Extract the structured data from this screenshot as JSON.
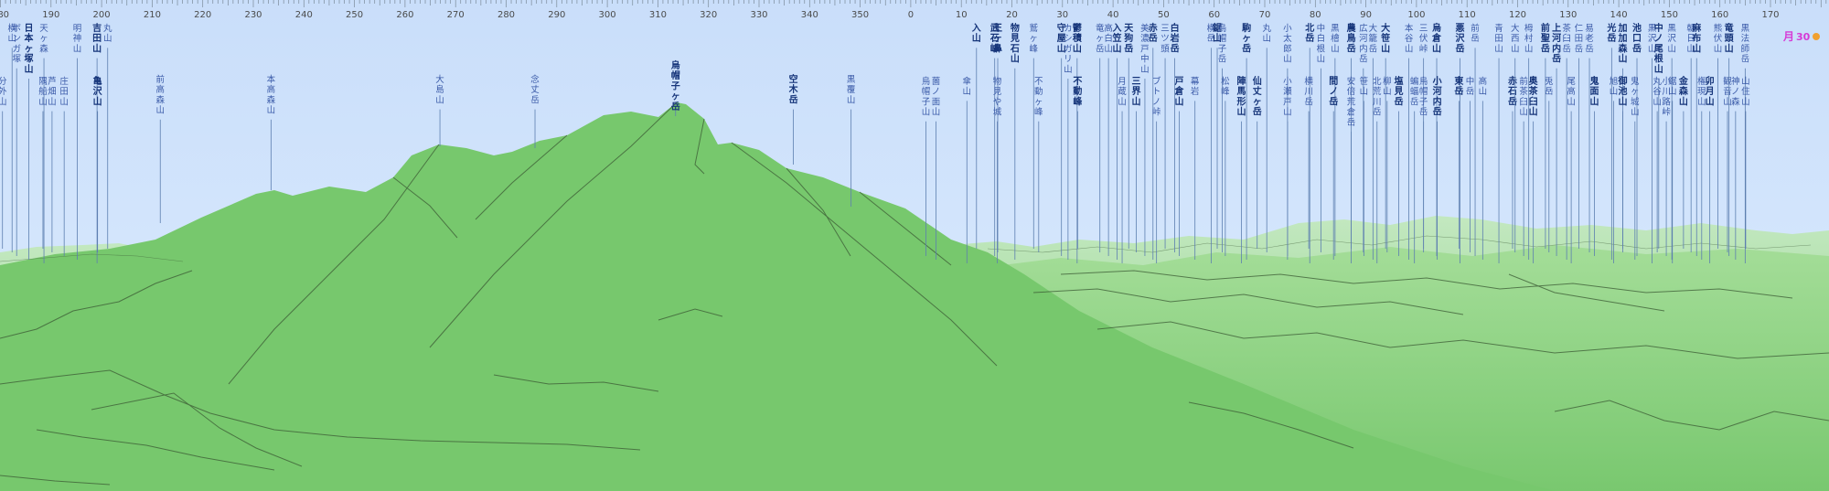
{
  "compass": {
    "degree_labels": [
      {
        "d": 180,
        "t": "180"
      },
      {
        "d": 190,
        "t": "190"
      },
      {
        "d": 200,
        "t": "200"
      },
      {
        "d": 210,
        "t": "210"
      },
      {
        "d": 220,
        "t": "220"
      },
      {
        "d": 230,
        "t": "230"
      },
      {
        "d": 240,
        "t": "240"
      },
      {
        "d": 250,
        "t": "250"
      },
      {
        "d": 260,
        "t": "260"
      },
      {
        "d": 270,
        "t": "270"
      },
      {
        "d": 280,
        "t": "280"
      },
      {
        "d": 290,
        "t": "290"
      },
      {
        "d": 300,
        "t": "300"
      },
      {
        "d": 310,
        "t": "310"
      },
      {
        "d": 320,
        "t": "320"
      },
      {
        "d": 330,
        "t": "330"
      },
      {
        "d": 340,
        "t": "340"
      },
      {
        "d": 350,
        "t": "350"
      },
      {
        "d": 360,
        "t": "0"
      },
      {
        "d": 370,
        "t": "10"
      },
      {
        "d": 380,
        "t": "20"
      },
      {
        "d": 390,
        "t": "30"
      },
      {
        "d": 400,
        "t": "40"
      },
      {
        "d": 410,
        "t": "50"
      },
      {
        "d": 420,
        "t": "60"
      },
      {
        "d": 430,
        "t": "70"
      },
      {
        "d": 440,
        "t": "80"
      },
      {
        "d": 450,
        "t": "90"
      },
      {
        "d": 460,
        "t": "100"
      },
      {
        "d": 470,
        "t": "110"
      },
      {
        "d": 480,
        "t": "120"
      },
      {
        "d": 490,
        "t": "130"
      },
      {
        "d": 500,
        "t": "140"
      },
      {
        "d": 510,
        "t": "150"
      },
      {
        "d": 520,
        "t": "160"
      },
      {
        "d": 530,
        "t": "170"
      }
    ]
  },
  "moon_label": "月",
  "moon_detail": "30",
  "peaks_near": [
    {
      "name": "前高森山",
      "d": 211.6,
      "peak": 88
    },
    {
      "name": "本高森山",
      "d": 233.5,
      "peak": 82
    },
    {
      "name": "大島山",
      "d": 266.9,
      "peak": 92
    },
    {
      "name": "念丈岳",
      "d": 285.7,
      "peak": 92
    },
    {
      "name": "烏帽子ヶ岳",
      "d": 313.5,
      "peak": 72,
      "bold": true
    },
    {
      "name": "空木岳",
      "d": 336.8,
      "peak": 90,
      "bold": true
    },
    {
      "name": "黒覆山",
      "d": 348.2,
      "peak": 92
    }
  ],
  "peaks_far": [
    {
      "name": "分外山",
      "d": 180.4,
      "row": 1
    },
    {
      "name": "横山",
      "d": 182.3,
      "row": 0
    },
    {
      "name": "ボンガ塚",
      "d": 183.2,
      "row": 0
    },
    {
      "name": "日本ヶ塚山",
      "d": 185.6,
      "row": 0,
      "bold": true
    },
    {
      "name": "天ヶ森",
      "d": 188.6,
      "row": 0
    },
    {
      "name": "隅船山",
      "d": 188.4,
      "row": 1
    },
    {
      "name": "芦畑山",
      "d": 190.2,
      "row": 1
    },
    {
      "name": "庄田山",
      "d": 192.6,
      "row": 1
    },
    {
      "name": "明神山",
      "d": 195.2,
      "row": 0
    },
    {
      "name": "吉田山",
      "d": 199.1,
      "row": 0,
      "bold": true
    },
    {
      "name": "丸山",
      "d": 201.2,
      "row": 0
    },
    {
      "name": "亀沢山",
      "d": 199.2,
      "row": 1,
      "bold": true
    },
    {
      "name": "烏帽子山",
      "d": 363.0,
      "row": 1
    },
    {
      "name": "薗ノ面山",
      "d": 365.0,
      "row": 1
    },
    {
      "name": "傘山",
      "d": 371.1,
      "row": 1
    },
    {
      "name": "入山",
      "d": 373.0,
      "row": 0,
      "bold": true
    },
    {
      "name": "王ヶ鼻",
      "d": 377.2,
      "row": 0,
      "bold": true
    },
    {
      "name": "武石峰",
      "d": 376.6,
      "row": 0,
      "bold": true
    },
    {
      "name": "物見石山",
      "d": 380.6,
      "row": 0,
      "bold": true
    },
    {
      "name": "物見や城",
      "d": 377.1,
      "row": 1
    },
    {
      "name": "鷲ヶ峰",
      "d": 384.3,
      "row": 0
    },
    {
      "name": "不動ヶ峰",
      "d": 385.3,
      "row": 1
    },
    {
      "name": "守屋山",
      "d": 389.8,
      "row": 0,
      "bold": true
    },
    {
      "name": "カシガリ山",
      "d": 391.1,
      "row": 0
    },
    {
      "name": "鬱積山",
      "d": 392.9,
      "row": 0,
      "bold": true
    },
    {
      "name": "不動峰",
      "d": 393.0,
      "row": 1,
      "bold": true
    },
    {
      "name": "竜ヶ岳",
      "d": 397.4,
      "row": 0
    },
    {
      "name": "高白山",
      "d": 399.1,
      "row": 0
    },
    {
      "name": "入笠山",
      "d": 400.8,
      "row": 0,
      "bold": true
    },
    {
      "name": "月蔵山",
      "d": 401.8,
      "row": 1
    },
    {
      "name": "天狗岳",
      "d": 403.1,
      "row": 0,
      "bold": true
    },
    {
      "name": "三界山",
      "d": 404.6,
      "row": 1,
      "bold": true
    },
    {
      "name": "美濃戸中山",
      "d": 406.3,
      "row": 0
    },
    {
      "name": "赤岳",
      "d": 407.9,
      "row": 0,
      "bold": true
    },
    {
      "name": "ブトノ峠",
      "d": 408.6,
      "row": 1
    },
    {
      "name": "三ツ頭",
      "d": 410.3,
      "row": 0
    },
    {
      "name": "白岩岳",
      "d": 412.2,
      "row": 0,
      "bold": true
    },
    {
      "name": "戸倉山",
      "d": 413.1,
      "row": 1,
      "bold": true
    },
    {
      "name": "幕岩",
      "d": 416.2,
      "row": 1
    },
    {
      "name": "横岳",
      "d": 419.4,
      "row": 0
    },
    {
      "name": "鋸山",
      "d": 420.6,
      "row": 0,
      "bold": true
    },
    {
      "name": "烏帽子岳",
      "d": 421.6,
      "row": 0
    },
    {
      "name": "松峰",
      "d": 422.2,
      "row": 1
    },
    {
      "name": "駒ヶ岳",
      "d": 426.4,
      "row": 0,
      "bold": true
    },
    {
      "name": "陣馬形山",
      "d": 425.4,
      "row": 1,
      "bold": true
    },
    {
      "name": "仙丈ヶ岳",
      "d": 428.5,
      "row": 1,
      "bold": true
    },
    {
      "name": "丸山",
      "d": 430.4,
      "row": 0
    },
    {
      "name": "小太郎山",
      "d": 434.5,
      "row": 0
    },
    {
      "name": "小瀬戸山",
      "d": 434.5,
      "row": 1
    },
    {
      "name": "北岳",
      "d": 438.9,
      "row": 0,
      "bold": true
    },
    {
      "name": "横川岳",
      "d": 438.7,
      "row": 1
    },
    {
      "name": "中白根山",
      "d": 441.1,
      "row": 0
    },
    {
      "name": "黒檜山",
      "d": 443.9,
      "row": 0
    },
    {
      "name": "間ノ岳",
      "d": 443.6,
      "row": 1,
      "bold": true
    },
    {
      "name": "農鳥岳",
      "d": 447.1,
      "row": 0,
      "bold": true
    },
    {
      "name": "安倍荒倉岳",
      "d": 447.1,
      "row": 1
    },
    {
      "name": "広河内岳",
      "d": 449.5,
      "row": 0
    },
    {
      "name": "笹山",
      "d": 449.6,
      "row": 1
    },
    {
      "name": "大籠岳",
      "d": 451.4,
      "row": 0
    },
    {
      "name": "北荒川岳",
      "d": 452.2,
      "row": 1
    },
    {
      "name": "大笹山",
      "d": 453.9,
      "row": 0,
      "bold": true
    },
    {
      "name": "柳山",
      "d": 454.2,
      "row": 1
    },
    {
      "name": "塩見岳",
      "d": 456.5,
      "row": 1,
      "bold": true
    },
    {
      "name": "本谷山",
      "d": 458.5,
      "row": 0
    },
    {
      "name": "蝙蝠岳",
      "d": 459.6,
      "row": 1
    },
    {
      "name": "三伏峠",
      "d": 461.4,
      "row": 0
    },
    {
      "name": "烏帽子岳",
      "d": 461.4,
      "row": 1
    },
    {
      "name": "烏倉山",
      "d": 464.0,
      "row": 0,
      "bold": true
    },
    {
      "name": "小河内岳",
      "d": 464.1,
      "row": 1,
      "bold": true
    },
    {
      "name": "悪沢岳",
      "d": 468.6,
      "row": 0,
      "bold": true
    },
    {
      "name": "東岳",
      "d": 468.4,
      "row": 1,
      "bold": true
    },
    {
      "name": "中岳",
      "d": 470.6,
      "row": 1
    },
    {
      "name": "前岳",
      "d": 471.6,
      "row": 0
    },
    {
      "name": "高山",
      "d": 473.1,
      "row": 1
    },
    {
      "name": "青田山",
      "d": 476.3,
      "row": 0
    },
    {
      "name": "赤石岳",
      "d": 479.0,
      "row": 1,
      "bold": true
    },
    {
      "name": "大西山",
      "d": 479.5,
      "row": 0
    },
    {
      "name": "前茶臼山",
      "d": 481.2,
      "row": 1
    },
    {
      "name": "栂村山",
      "d": 482.2,
      "row": 0
    },
    {
      "name": "奥茶臼山",
      "d": 483.1,
      "row": 1,
      "bold": true
    },
    {
      "name": "前聖岳",
      "d": 485.5,
      "row": 0,
      "bold": true
    },
    {
      "name": "兎岳",
      "d": 486.2,
      "row": 1
    },
    {
      "name": "上河内岳",
      "d": 487.7,
      "row": 0,
      "bold": true
    },
    {
      "name": "茶臼岳",
      "d": 489.7,
      "row": 0
    },
    {
      "name": "尾高山",
      "d": 490.6,
      "row": 1
    },
    {
      "name": "仁田岳",
      "d": 492.1,
      "row": 0
    },
    {
      "name": "易老岳",
      "d": 494.2,
      "row": 0
    },
    {
      "name": "鬼面山",
      "d": 495.2,
      "row": 1,
      "bold": true
    },
    {
      "name": "光岳",
      "d": 498.6,
      "row": 0,
      "bold": true
    },
    {
      "name": "旭山",
      "d": 499.0,
      "row": 1
    },
    {
      "name": "加加森山",
      "d": 500.8,
      "row": 0,
      "bold": true
    },
    {
      "name": "御池山",
      "d": 500.8,
      "row": 1,
      "bold": true
    },
    {
      "name": "池口岳",
      "d": 503.6,
      "row": 0,
      "bold": true
    },
    {
      "name": "鬼ヶ城山",
      "d": 503.2,
      "row": 1
    },
    {
      "name": "黒沢山",
      "d": 506.6,
      "row": 0
    },
    {
      "name": "中ノ尾根山",
      "d": 507.9,
      "row": 0,
      "bold": true
    },
    {
      "name": "丸谷山",
      "d": 507.6,
      "row": 1
    },
    {
      "name": "小川路峠",
      "d": 509.4,
      "row": 1
    },
    {
      "name": "黒沢山",
      "d": 510.5,
      "row": 0
    },
    {
      "name": "鋸山",
      "d": 510.6,
      "row": 1
    },
    {
      "name": "金森山",
      "d": 512.8,
      "row": 1,
      "bold": true
    },
    {
      "name": "朝日山",
      "d": 514.3,
      "row": 0
    },
    {
      "name": "麻布山",
      "d": 515.4,
      "row": 0,
      "bold": true
    },
    {
      "name": "権現山",
      "d": 516.4,
      "row": 1
    },
    {
      "name": "卯月山",
      "d": 518.0,
      "row": 1,
      "bold": true
    },
    {
      "name": "熊伏山",
      "d": 519.6,
      "row": 0
    },
    {
      "name": "観音山",
      "d": 521.5,
      "row": 1
    },
    {
      "name": "竜頭山",
      "d": 521.8,
      "row": 0,
      "bold": true
    },
    {
      "name": "神ノ森",
      "d": 523.1,
      "row": 1
    },
    {
      "name": "黒法師岳",
      "d": 525.0,
      "row": 0
    },
    {
      "name": "山住山",
      "d": 525.1,
      "row": 1
    }
  ]
}
